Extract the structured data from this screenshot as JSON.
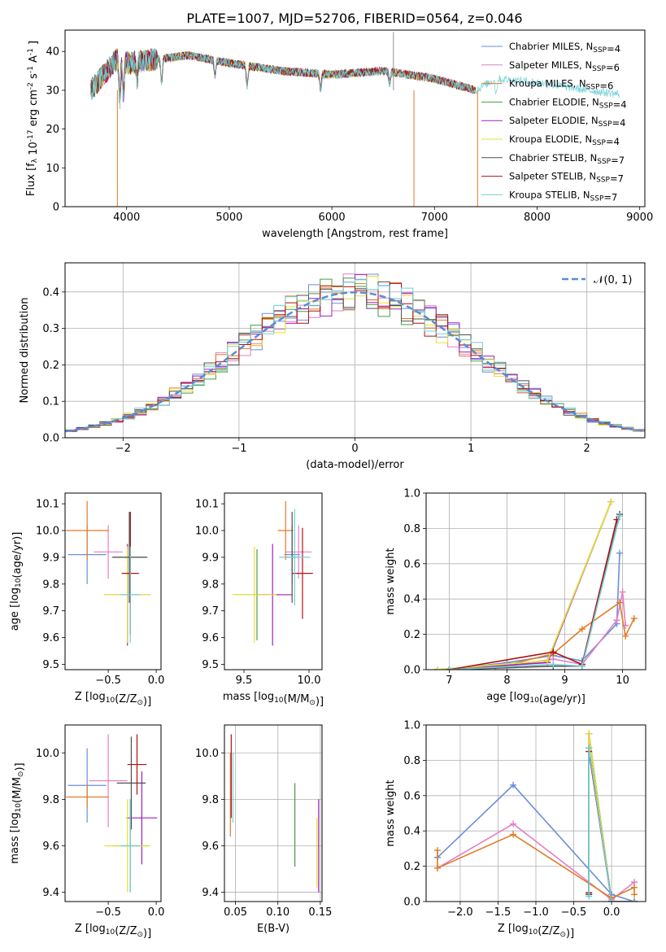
{
  "figure": {
    "title": "PLATE=1007, MJD=52706, FIBERID=0564, z=0.046"
  },
  "chart_data": [
    {
      "id": "spectrum",
      "type": "line",
      "xlabel": "wavelength [Angstrom, rest frame]",
      "ylabel": "Flux [f_λ 10^-17 erg cm^-2 s^-1 A^-1]",
      "xlim": [
        3400,
        9050
      ],
      "ylim": [
        0,
        45.5
      ],
      "xticks": [
        4000,
        5000,
        6000,
        7000,
        8000,
        9000
      ],
      "yticks": [
        0,
        10,
        20,
        30,
        40
      ],
      "grid": false,
      "legend": "top-right",
      "series": [
        {
          "name": "Chabrier MILES, N_SSP=4",
          "color": "#6a8fd8",
          "x": [
            3650,
            3900,
            4000,
            4300,
            4600,
            5000,
            5500,
            6000,
            6500,
            7000,
            7400
          ],
          "y": [
            30,
            38,
            37,
            38,
            39,
            37,
            35,
            34,
            35,
            33,
            30
          ]
        },
        {
          "name": "Salpeter MILES, N_SSP=6",
          "color": "#e37fc5",
          "x": [
            3650,
            3900,
            4000,
            4300,
            4600,
            5000,
            5500,
            6000,
            6500,
            7000,
            7400
          ],
          "y": [
            30,
            38,
            37,
            38,
            39,
            37,
            35,
            34,
            35,
            33,
            30
          ]
        },
        {
          "name": "Kroupa MILES, N_SSP=6",
          "color": "#e27b26",
          "x": [
            3650,
            3900,
            4000,
            4300,
            4600,
            5000,
            5500,
            6000,
            6500,
            7000,
            7400
          ],
          "y": [
            30,
            38,
            37,
            38,
            39,
            37,
            35,
            34,
            35,
            33,
            30
          ]
        },
        {
          "name": "Chabrier ELODIE, N_SSP=4",
          "color": "#4a9a4a",
          "x": [
            3650,
            3900,
            4000,
            4300,
            4600,
            5000,
            5500,
            6000,
            6500,
            7000,
            7400
          ],
          "y": [
            30,
            38,
            37,
            38,
            39,
            37,
            35,
            34,
            35,
            33,
            30
          ]
        },
        {
          "name": "Salpeter ELODIE, N_SSP=4",
          "color": "#a020c0",
          "x": [
            3650,
            3900,
            4000,
            4300,
            4600,
            5000,
            5500,
            6000,
            6500,
            7000,
            7400
          ],
          "y": [
            30,
            38,
            37,
            38,
            39,
            37,
            35,
            34,
            35,
            33,
            30
          ]
        },
        {
          "name": "Kroupa ELODIE, N_SSP=4",
          "color": "#e8e030",
          "x": [
            3650,
            3900,
            4000,
            4300,
            4600,
            5000,
            5500,
            6000,
            6500,
            7000,
            7400
          ],
          "y": [
            30,
            38,
            37,
            38,
            39,
            37,
            35,
            34,
            35,
            33,
            30
          ]
        },
        {
          "name": "Chabrier STELIB, N_SSP=7",
          "color": "#505050",
          "x": [
            3650,
            3900,
            4000,
            4300,
            4600,
            5000,
            5500,
            6000,
            6500,
            7000,
            7400
          ],
          "y": [
            30,
            38,
            37,
            38,
            39,
            37,
            35,
            34,
            35,
            33,
            30
          ]
        },
        {
          "name": "Salpeter STELIB, N_SSP=7",
          "color": "#b01010",
          "x": [
            3650,
            3900,
            4000,
            4300,
            4600,
            5000,
            5500,
            6000,
            6500,
            7000,
            7400
          ],
          "y": [
            30,
            38,
            37,
            38,
            39,
            37,
            35,
            34,
            35,
            33,
            30
          ]
        },
        {
          "name": "Kroupa STELIB, N_SSP=7",
          "color": "#70d0d8",
          "x": [
            3650,
            3900,
            4000,
            4300,
            4600,
            5000,
            5500,
            6000,
            6500,
            7000,
            7400,
            7600,
            8000,
            8500,
            8800
          ],
          "y": [
            30,
            38,
            37,
            38,
            39,
            37,
            35,
            34,
            35,
            33,
            30,
            33,
            32,
            30,
            29
          ]
        }
      ]
    },
    {
      "id": "residuals",
      "type": "line",
      "xlabel": "(data-model)/error",
      "ylabel": "Normed distribution",
      "xlim": [
        -2.5,
        2.5
      ],
      "ylim": [
        0,
        0.48
      ],
      "xticks": [
        -2,
        -1,
        0,
        1,
        2
      ],
      "yticks": [
        0.0,
        0.1,
        0.2,
        0.3,
        0.4
      ],
      "grid": true,
      "legend": "top-right",
      "reference": {
        "name": "𝒩(0, 1)",
        "color": "#5b8bd4",
        "mean": 0,
        "sigma": 1
      },
      "bin_width": 0.1,
      "series_colors": [
        "#6a8fd8",
        "#e37fc5",
        "#e27b26",
        "#4a9a4a",
        "#a020c0",
        "#e8e030",
        "#505050",
        "#b01010",
        "#70d0d8"
      ]
    },
    {
      "id": "age-vs-Z",
      "type": "scatter",
      "xlabel": "Z [log10(Z/Z☉)]",
      "ylabel": "age  [log10(age/yr)]",
      "xlim": [
        -0.95,
        0.05
      ],
      "ylim": [
        9.48,
        10.14
      ],
      "xticks": [
        -0.5,
        0.0
      ],
      "xticklabels": [
        "−0.5",
        "0.0"
      ],
      "yticks": [
        9.5,
        9.6,
        9.7,
        9.8,
        9.9,
        10.0,
        10.1
      ],
      "grid": false,
      "points": [
        {
          "color": "#6a8fd8",
          "x": -0.72,
          "y": 9.91,
          "xerr": 0.2,
          "yerr": 0.11
        },
        {
          "color": "#e37fc5",
          "x": -0.5,
          "y": 9.92,
          "xerr": 0.15,
          "yerr": 0.1
        },
        {
          "color": "#e27b26",
          "x": -0.72,
          "y": 10.0,
          "xerr": 0.22,
          "yerr": 0.11
        },
        {
          "color": "#4a9a4a",
          "x": -0.27,
          "y": 9.9,
          "xerr": 0.18,
          "yerr": 0.17
        },
        {
          "color": "#a020c0",
          "x": -0.3,
          "y": 9.76,
          "xerr": 0.24,
          "yerr": 0.19
        },
        {
          "color": "#e8e030",
          "x": -0.3,
          "y": 9.76,
          "xerr": 0.24,
          "yerr": 0.18
        },
        {
          "color": "#505050",
          "x": -0.28,
          "y": 9.9,
          "xerr": 0.18,
          "yerr": 0.17
        },
        {
          "color": "#b01010",
          "x": -0.27,
          "y": 9.84,
          "xerr": 0.09,
          "yerr": 0.23
        },
        {
          "color": "#70d0d8",
          "x": -0.27,
          "y": 9.76,
          "xerr": 0.1,
          "yerr": 0.18
        }
      ]
    },
    {
      "id": "age-vs-mass",
      "type": "scatter",
      "xlabel": "mass [log10(M/M☉)]",
      "ylabel": "",
      "xlim": [
        9.35,
        10.1
      ],
      "ylim": [
        9.48,
        10.14
      ],
      "xticks": [
        9.5,
        10.0
      ],
      "yticks": [
        9.5,
        9.6,
        9.7,
        9.8,
        9.9,
        10.0,
        10.1
      ],
      "grid": false,
      "points": [
        {
          "color": "#6a8fd8",
          "x": 9.87,
          "y": 9.91,
          "xerr": 0.06,
          "yerr": 0.11
        },
        {
          "color": "#e37fc5",
          "x": 9.92,
          "y": 9.92,
          "xerr": 0.1,
          "yerr": 0.1
        },
        {
          "color": "#e27b26",
          "x": 9.82,
          "y": 10.0,
          "xerr": 0.06,
          "yerr": 0.11
        },
        {
          "color": "#4a9a4a",
          "x": 9.6,
          "y": 9.76,
          "xerr": 0.18,
          "yerr": 0.17
        },
        {
          "color": "#a020c0",
          "x": 9.72,
          "y": 9.76,
          "xerr": 0.15,
          "yerr": 0.19
        },
        {
          "color": "#e8e030",
          "x": 9.58,
          "y": 9.76,
          "xerr": 0.17,
          "yerr": 0.18
        },
        {
          "color": "#505050",
          "x": 9.87,
          "y": 9.9,
          "xerr": 0.05,
          "yerr": 0.17
        },
        {
          "color": "#b01010",
          "x": 9.95,
          "y": 9.84,
          "xerr": 0.08,
          "yerr": 0.17
        },
        {
          "color": "#70d0d8",
          "x": 9.89,
          "y": 9.9,
          "xerr": 0.12,
          "yerr": 0.18
        }
      ]
    },
    {
      "id": "weight-vs-age",
      "type": "line",
      "xlabel": "age  [log10(age/yr)]",
      "ylabel": "mass weight",
      "xlim": [
        6.6,
        10.4
      ],
      "ylim": [
        0,
        1.0
      ],
      "xticks": [
        7,
        8,
        9,
        10
      ],
      "yticks": [
        0.0,
        0.2,
        0.4,
        0.6,
        0.8,
        1.0
      ],
      "grid": true,
      "series": [
        {
          "color": "#6a8fd8",
          "x": [
            7.0,
            8.0,
            8.8,
            9.3,
            9.9,
            9.95
          ],
          "y": [
            0.0,
            0.04,
            0.08,
            0.05,
            0.26,
            0.66
          ]
        },
        {
          "color": "#e37fc5",
          "x": [
            7.0,
            8.0,
            8.8,
            9.3,
            9.9,
            10.0,
            10.05
          ],
          "y": [
            0.0,
            0.02,
            0.06,
            0.03,
            0.28,
            0.44,
            0.25
          ]
        },
        {
          "color": "#e27b26",
          "x": [
            7.0,
            7.8,
            8.8,
            9.3,
            9.95,
            10.05,
            10.2
          ],
          "y": [
            0.0,
            0.01,
            0.09,
            0.23,
            0.38,
            0.19,
            0.29
          ]
        },
        {
          "color": "#4a9a4a",
          "x": [
            6.8,
            8.7,
            9.8
          ],
          "y": [
            0.0,
            0.05,
            0.95
          ]
        },
        {
          "color": "#a020c0",
          "x": [
            6.8,
            8.7,
            9.8
          ],
          "y": [
            0.0,
            0.04,
            0.95
          ]
        },
        {
          "color": "#e8e030",
          "x": [
            6.8,
            8.7,
            9.8
          ],
          "y": [
            0.0,
            0.05,
            0.95
          ]
        },
        {
          "color": "#505050",
          "x": [
            7.0,
            8.8,
            9.3,
            9.95
          ],
          "y": [
            0.0,
            0.02,
            0.02,
            0.88
          ]
        },
        {
          "color": "#b01010",
          "x": [
            7.0,
            8.8,
            9.3,
            9.9
          ],
          "y": [
            0.0,
            0.1,
            0.03,
            0.85
          ]
        },
        {
          "color": "#70d0d8",
          "x": [
            7.0,
            8.8,
            9.3,
            9.95
          ],
          "y": [
            0.0,
            0.03,
            0.02,
            0.87
          ]
        }
      ]
    },
    {
      "id": "mass-vs-Z",
      "type": "scatter",
      "xlabel": "Z [log10(Z/Z☉)]",
      "ylabel": "mass [log10(M/M☉)]",
      "xlim": [
        -0.95,
        0.05
      ],
      "ylim": [
        9.36,
        10.12
      ],
      "xticks": [
        -0.5,
        0.0
      ],
      "xticklabels": [
        "−0.5",
        "0.0"
      ],
      "yticks": [
        9.4,
        9.6,
        9.8,
        10.0
      ],
      "grid": false,
      "points": [
        {
          "color": "#6a8fd8",
          "x": -0.72,
          "y": 9.86,
          "xerr": 0.2,
          "yerr": 0.16
        },
        {
          "color": "#e37fc5",
          "x": -0.5,
          "y": 9.88,
          "xerr": 0.2,
          "yerr": 0.2
        },
        {
          "color": "#e27b26",
          "x": -0.72,
          "y": 9.81,
          "xerr": 0.22,
          "yerr": 0.05
        },
        {
          "color": "#4a9a4a",
          "x": -0.27,
          "y": 9.6,
          "xerr": 0.18,
          "yerr": 0.2
        },
        {
          "color": "#a020c0",
          "x": -0.15,
          "y": 9.72,
          "xerr": 0.16,
          "yerr": 0.2
        },
        {
          "color": "#e8e030",
          "x": -0.3,
          "y": 9.6,
          "xerr": 0.24,
          "yerr": 0.2
        },
        {
          "color": "#505050",
          "x": -0.26,
          "y": 9.87,
          "xerr": 0.15,
          "yerr": 0.2
        },
        {
          "color": "#b01010",
          "x": -0.2,
          "y": 9.95,
          "xerr": 0.1,
          "yerr": 0.13
        },
        {
          "color": "#70d0d8",
          "x": -0.27,
          "y": 9.6,
          "xerr": 0.1,
          "yerr": 0.2
        }
      ]
    },
    {
      "id": "mass-vs-EBV",
      "type": "scatter",
      "xlabel": "E(B-V)",
      "ylabel": "",
      "xlim": [
        0.037,
        0.152
      ],
      "ylim": [
        9.36,
        10.12
      ],
      "xticks": [
        0.05,
        0.1,
        0.15
      ],
      "yticks": [
        9.4,
        9.6,
        9.8,
        10.0
      ],
      "grid": true,
      "points": [
        {
          "color": "#e27b26",
          "x": 0.044,
          "y": 9.82,
          "xerr": 0.0,
          "yerr": 0.18
        },
        {
          "color": "#b01010",
          "x": 0.045,
          "y": 9.9,
          "xerr": 0.0,
          "yerr": 0.18
        },
        {
          "color": "#70d0d8",
          "x": 0.047,
          "y": 9.85,
          "xerr": 0.0,
          "yerr": 0.15
        },
        {
          "color": "#4a9a4a",
          "x": 0.12,
          "y": 9.69,
          "xerr": 0.0,
          "yerr": 0.18
        },
        {
          "color": "#a020c0",
          "x": 0.148,
          "y": 9.6,
          "xerr": 0.0,
          "yerr": 0.2
        },
        {
          "color": "#e8e030",
          "x": 0.146,
          "y": 9.57,
          "xerr": 0.0,
          "yerr": 0.15
        }
      ]
    },
    {
      "id": "weight-vs-Z",
      "type": "line",
      "xlabel": "Z [log10(Z/Z☉)]",
      "ylabel": "mass weight",
      "xlim": [
        -2.45,
        0.45
      ],
      "ylim": [
        0,
        1.0
      ],
      "xticks": [
        -2.0,
        -1.5,
        -1.0,
        -0.5,
        0.0
      ],
      "xticklabels": [
        "−2.0",
        "−1.5",
        "−1.0",
        "−0.5",
        "0.0"
      ],
      "yticks": [
        0.0,
        0.2,
        0.4,
        0.6,
        0.8,
        1.0
      ],
      "grid": true,
      "series": [
        {
          "color": "#6a8fd8",
          "x": [
            -2.3,
            -1.3,
            0.0,
            0.3
          ],
          "y": [
            0.25,
            0.66,
            0.04,
            0.0
          ]
        },
        {
          "color": "#e37fc5",
          "x": [
            -2.3,
            -1.3,
            0.0,
            0.3
          ],
          "y": [
            0.19,
            0.44,
            0.01,
            0.11
          ]
        },
        {
          "color": "#e27b26",
          "x": [
            -2.3,
            -2.3,
            -1.3,
            0.0,
            0.3,
            0.3
          ],
          "y": [
            0.29,
            0.19,
            0.38,
            0.02,
            0.08,
            0.04
          ]
        },
        {
          "color": "#4a9a4a",
          "x": [
            -0.3,
            -0.3,
            0.0,
            0.3
          ],
          "y": [
            0.05,
            0.95,
            0.0,
            0.0
          ]
        },
        {
          "color": "#a020c0",
          "x": [
            -0.3,
            -0.3,
            0.0,
            0.3
          ],
          "y": [
            0.04,
            0.95,
            0.0,
            0.0
          ]
        },
        {
          "color": "#e8e030",
          "x": [
            -0.3,
            -0.3,
            0.0,
            0.3
          ],
          "y": [
            0.05,
            0.95,
            0.0,
            0.0
          ]
        },
        {
          "color": "#505050",
          "x": [
            -0.3,
            -0.3,
            0.0,
            0.3
          ],
          "y": [
            0.04,
            0.87,
            0.0,
            0.0
          ]
        },
        {
          "color": "#b01010",
          "x": [
            -0.3,
            -0.3,
            0.0,
            0.3
          ],
          "y": [
            0.05,
            0.85,
            0.0,
            0.0
          ]
        },
        {
          "color": "#70d0d8",
          "x": [
            -0.3,
            -0.3,
            0.0,
            0.3
          ],
          "y": [
            0.03,
            0.87,
            0.0,
            0.0
          ]
        }
      ]
    }
  ]
}
